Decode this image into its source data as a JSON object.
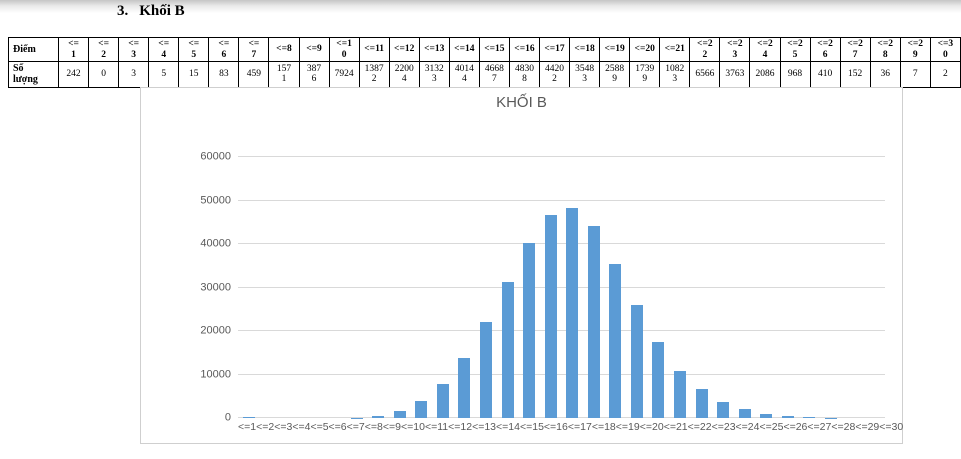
{
  "page": {
    "heading_number": "3.",
    "heading_text": "Khối B"
  },
  "table": {
    "corner_header": "Điểm",
    "row_label": "Số\nlượng",
    "headers_display": [
      "<=\n1",
      "<=\n2",
      "<=\n3",
      "<=\n4",
      "<=\n5",
      "<=\n6",
      "<=\n7",
      "<=8",
      "<=9",
      "<=1\n0",
      "<=11",
      "<=12",
      "<=13",
      "<=14",
      "<=15",
      "<=16",
      "<=17",
      "<=18",
      "<=19",
      "<=20",
      "<=21",
      "<=2\n2",
      "<=2\n3",
      "<=2\n4",
      "<=2\n5",
      "<=2\n6",
      "<=2\n7",
      "<=2\n8",
      "<=2\n9",
      "<=3\n0"
    ],
    "values_display": [
      "242",
      "0",
      "3",
      "5",
      "15",
      "83",
      "459",
      "157\n1",
      "387\n6",
      "7924",
      "1387\n2",
      "2200\n4",
      "3132\n3",
      "4014\n4",
      "4668\n7",
      "4830\n8",
      "4420\n2",
      "3548\n3",
      "2588\n9",
      "1739\n9",
      "1082\n3",
      "6566",
      "3763",
      "2086",
      "968",
      "410",
      "152",
      "36",
      "7",
      "2"
    ]
  },
  "chart_data": {
    "type": "bar",
    "title": "KHỐI B",
    "categories": [
      "<=1",
      "<=2",
      "<=3",
      "<=4",
      "<=5",
      "<=6",
      "<=7",
      "<=8",
      "<=9",
      "<=10",
      "<=11",
      "<=12",
      "<=13",
      "<=14",
      "<=15",
      "<=16",
      "<=17",
      "<=18",
      "<=19",
      "<=20",
      "<=21",
      "<=22",
      "<=23",
      "<=24",
      "<=25",
      "<=26",
      "<=27",
      "<=28",
      "<=29",
      "<=30"
    ],
    "values": [
      242,
      0,
      3,
      5,
      15,
      83,
      459,
      1571,
      3876,
      7924,
      13872,
      22004,
      31323,
      40144,
      46687,
      48308,
      44202,
      35483,
      25889,
      17399,
      10823,
      6566,
      3763,
      2086,
      968,
      410,
      152,
      36,
      7,
      2
    ],
    "xlabel": "",
    "ylabel": "",
    "ylim": [
      0,
      60000
    ],
    "yticks": [
      0,
      10000,
      20000,
      30000,
      40000,
      50000,
      60000
    ],
    "grid": true,
    "legend": "none",
    "bar_color": "#5B9BD5",
    "gridline_color": "#d9d9d9",
    "axis_text_color": "#595959"
  }
}
